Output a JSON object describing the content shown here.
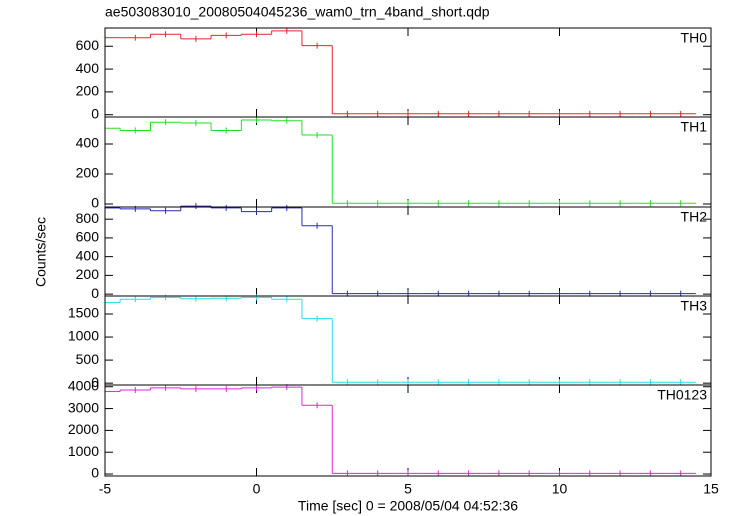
{
  "chart_data": {
    "type": "step",
    "title": "ae503083010_20080504045236_wam0_trn_4band_short.qdp",
    "xlabel": "Time [sec] 0 = 2008/05/04 04:52:36",
    "ylabel": "Counts/sec",
    "x": [
      -5,
      -4,
      -3,
      -2,
      -1,
      0,
      1,
      2,
      3,
      4,
      5,
      6,
      7,
      8,
      9,
      10,
      11,
      12,
      13,
      14
    ],
    "xlim": [
      -5,
      15
    ],
    "xticks": [
      -5,
      0,
      5,
      10,
      15
    ],
    "panels": [
      {
        "name": "TH0",
        "color": "#e8222a",
        "ylim": [
          -20,
          760
        ],
        "yticks": [
          0,
          200,
          400,
          600
        ],
        "values": [
          675,
          675,
          705,
          665,
          695,
          705,
          735,
          605,
          8,
          8,
          8,
          8,
          8,
          8,
          8,
          8,
          8,
          8,
          8,
          8
        ]
      },
      {
        "name": "TH1",
        "color": "#22e022",
        "ylim": [
          -20,
          580
        ],
        "yticks": [
          0,
          200,
          400
        ],
        "values": [
          505,
          490,
          545,
          540,
          490,
          560,
          555,
          460,
          5,
          5,
          5,
          5,
          5,
          5,
          5,
          5,
          5,
          5,
          5,
          5
        ]
      },
      {
        "name": "TH2",
        "color": "#2a2ab8",
        "ylim": [
          -20,
          930
        ],
        "yticks": [
          0,
          200,
          400,
          600,
          800
        ],
        "values": [
          920,
          910,
          890,
          940,
          920,
          880,
          920,
          730,
          5,
          5,
          5,
          5,
          5,
          5,
          5,
          5,
          5,
          5,
          5,
          5
        ]
      },
      {
        "name": "TH3",
        "color": "#22e0e8",
        "ylim": [
          -40,
          1890
        ],
        "yticks": [
          0,
          500,
          1000,
          1500
        ],
        "values": [
          1750,
          1820,
          1860,
          1830,
          1840,
          1860,
          1820,
          1400,
          20,
          20,
          20,
          20,
          20,
          20,
          20,
          20,
          20,
          20,
          20,
          20
        ]
      },
      {
        "name": "TH0123",
        "color": "#e022e0",
        "ylim": [
          -90,
          4080
        ],
        "yticks": [
          0,
          1000,
          2000,
          3000,
          4000
        ],
        "values": [
          3780,
          3850,
          3950,
          3900,
          3900,
          3950,
          3980,
          3150,
          30,
          30,
          30,
          30,
          30,
          30,
          30,
          30,
          30,
          30,
          30,
          30
        ]
      }
    ]
  }
}
